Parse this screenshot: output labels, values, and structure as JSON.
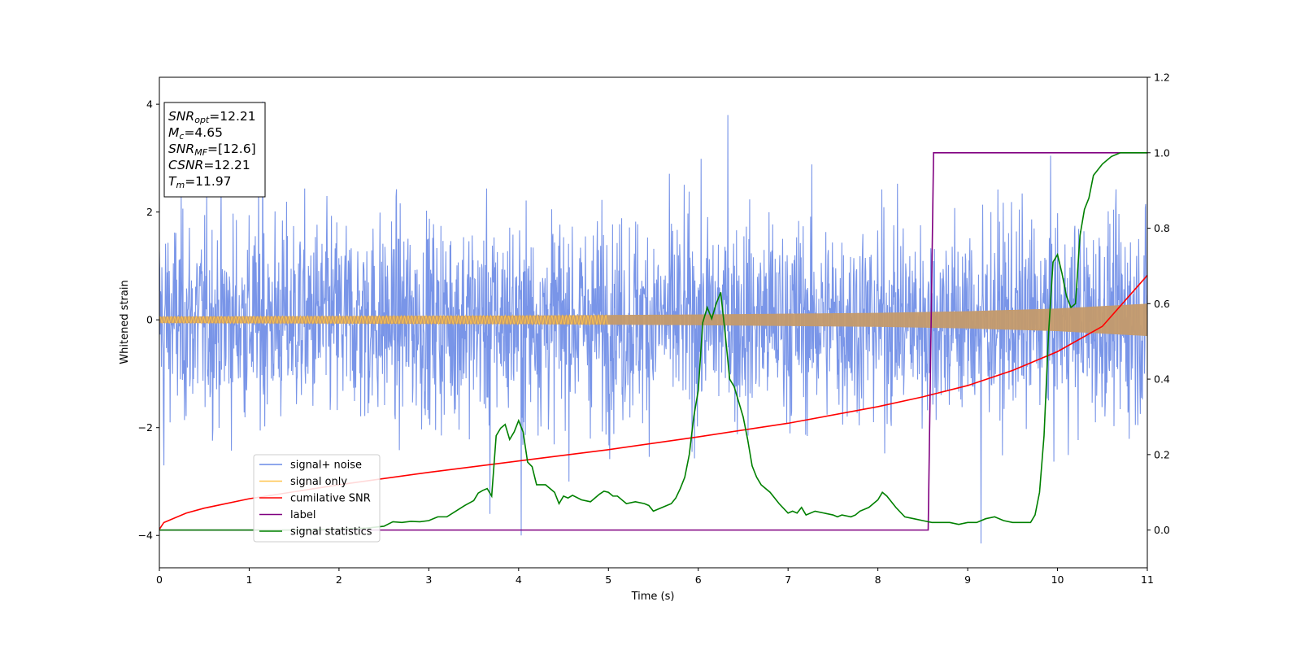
{
  "chart_data": {
    "type": "line",
    "xlabel": "Time (s)",
    "ylabel": "Whitened strain",
    "xlim": [
      0,
      11
    ],
    "ylim": [
      -4.6,
      4.5
    ],
    "y2lim": [
      -0.1,
      1.2
    ],
    "x_ticks": [
      "0",
      "1",
      "2",
      "3",
      "4",
      "5",
      "6",
      "7",
      "8",
      "9",
      "10",
      "11"
    ],
    "y_ticks": [
      "−4",
      "−2",
      "0",
      "2",
      "4"
    ],
    "y2_ticks": [
      "0.0",
      "0.2",
      "0.4",
      "0.6",
      "0.8",
      "1.0",
      "1.2"
    ],
    "grid": false,
    "legend_position": "lower-left",
    "annotation": [
      {
        "main": "SNR",
        "sub": "opt",
        "value": "=12.21"
      },
      {
        "main": "M",
        "sub": "c",
        "value": "=4.65"
      },
      {
        "main": "SNR",
        "sub": "MF",
        "value": "=[12.6]"
      },
      {
        "main": "CSNR",
        "sub": "",
        "value": "=12.21"
      },
      {
        "main": "T",
        "sub": "m",
        "value": "=11.97"
      }
    ],
    "series": [
      {
        "name": "signal+ noise",
        "color": "#6a8ae6",
        "axis": "left",
        "style": "noise band",
        "typical_range": [
          -2.0,
          2.0
        ],
        "extreme_peaks": [
          [
            1.15,
            4.05
          ],
          [
            6.33,
            3.8
          ],
          [
            0.05,
            -2.7
          ],
          [
            4.03,
            -4.0
          ],
          [
            9.15,
            -4.15
          ],
          [
            3.68,
            -3.6
          ]
        ]
      },
      {
        "name": "signal only",
        "color": "#ffc44d",
        "axis": "left",
        "style": "chirp envelope",
        "x": [
          0,
          2,
          4,
          6,
          8,
          9,
          10,
          11
        ],
        "amplitude": [
          0.06,
          0.07,
          0.08,
          0.1,
          0.13,
          0.16,
          0.21,
          0.3
        ]
      },
      {
        "name": "cumilative SNR",
        "color": "#ff0000",
        "axis": "right",
        "x": [
          0,
          0.05,
          0.3,
          0.5,
          1,
          2,
          3,
          4,
          5,
          6,
          7,
          8,
          8.5,
          9,
          9.5,
          10,
          10.5,
          11
        ],
        "y": [
          0.002,
          0.02,
          0.045,
          0.058,
          0.083,
          0.12,
          0.153,
          0.183,
          0.213,
          0.247,
          0.283,
          0.327,
          0.353,
          0.383,
          0.423,
          0.473,
          0.54,
          0.675
        ]
      },
      {
        "name": "label",
        "color": "#800080",
        "axis": "right",
        "x": [
          0,
          8.56,
          8.62,
          11
        ],
        "y": [
          0,
          0,
          1,
          1
        ]
      },
      {
        "name": "signal statistics",
        "color": "#008000",
        "axis": "right",
        "x": [
          0,
          0.5,
          1,
          1.5,
          2,
          2.3,
          2.5,
          2.6,
          2.7,
          2.8,
          2.9,
          3,
          3.1,
          3.2,
          3.3,
          3.4,
          3.5,
          3.55,
          3.6,
          3.65,
          3.7,
          3.75,
          3.8,
          3.85,
          3.9,
          3.95,
          4,
          4.05,
          4.1,
          4.15,
          4.2,
          4.3,
          4.35,
          4.4,
          4.45,
          4.5,
          4.55,
          4.6,
          4.7,
          4.8,
          4.9,
          4.95,
          5,
          5.05,
          5.1,
          5.2,
          5.3,
          5.4,
          5.45,
          5.5,
          5.6,
          5.7,
          5.75,
          5.8,
          5.85,
          5.9,
          5.95,
          6,
          6.05,
          6.1,
          6.15,
          6.2,
          6.25,
          6.3,
          6.35,
          6.4,
          6.45,
          6.5,
          6.55,
          6.6,
          6.65,
          6.7,
          6.8,
          6.9,
          7,
          7.05,
          7.1,
          7.15,
          7.2,
          7.3,
          7.4,
          7.5,
          7.55,
          7.6,
          7.7,
          7.75,
          7.8,
          7.9,
          8,
          8.05,
          8.1,
          8.2,
          8.3,
          8.4,
          8.5,
          8.6,
          8.7,
          8.8,
          8.9,
          9,
          9.1,
          9.2,
          9.3,
          9.4,
          9.5,
          9.6,
          9.7,
          9.75,
          9.8,
          9.85,
          9.9,
          9.95,
          10,
          10.05,
          10.1,
          10.15,
          10.2,
          10.25,
          10.3,
          10.35,
          10.4,
          10.5,
          10.6,
          10.7,
          10.8,
          11
        ],
        "y": [
          0,
          0,
          0,
          0,
          0.002,
          0.005,
          0.01,
          0.022,
          0.02,
          0.023,
          0.022,
          0.025,
          0.035,
          0.035,
          0.05,
          0.065,
          0.078,
          0.098,
          0.105,
          0.11,
          0.09,
          0.25,
          0.27,
          0.28,
          0.24,
          0.26,
          0.29,
          0.26,
          0.18,
          0.168,
          0.12,
          0.12,
          0.11,
          0.1,
          0.07,
          0.09,
          0.085,
          0.092,
          0.08,
          0.075,
          0.095,
          0.103,
          0.1,
          0.09,
          0.09,
          0.07,
          0.075,
          0.07,
          0.065,
          0.05,
          0.06,
          0.07,
          0.085,
          0.11,
          0.14,
          0.2,
          0.3,
          0.37,
          0.55,
          0.59,
          0.56,
          0.6,
          0.63,
          0.52,
          0.4,
          0.38,
          0.34,
          0.3,
          0.24,
          0.17,
          0.14,
          0.12,
          0.1,
          0.07,
          0.045,
          0.05,
          0.045,
          0.06,
          0.04,
          0.05,
          0.045,
          0.04,
          0.035,
          0.04,
          0.035,
          0.04,
          0.05,
          0.06,
          0.08,
          0.1,
          0.09,
          0.06,
          0.035,
          0.03,
          0.025,
          0.02,
          0.02,
          0.02,
          0.015,
          0.02,
          0.02,
          0.03,
          0.035,
          0.025,
          0.02,
          0.02,
          0.02,
          0.04,
          0.1,
          0.25,
          0.52,
          0.71,
          0.73,
          0.68,
          0.62,
          0.59,
          0.6,
          0.78,
          0.85,
          0.88,
          0.94,
          0.97,
          0.99,
          1.0,
          1.0,
          1.0
        ]
      }
    ]
  }
}
